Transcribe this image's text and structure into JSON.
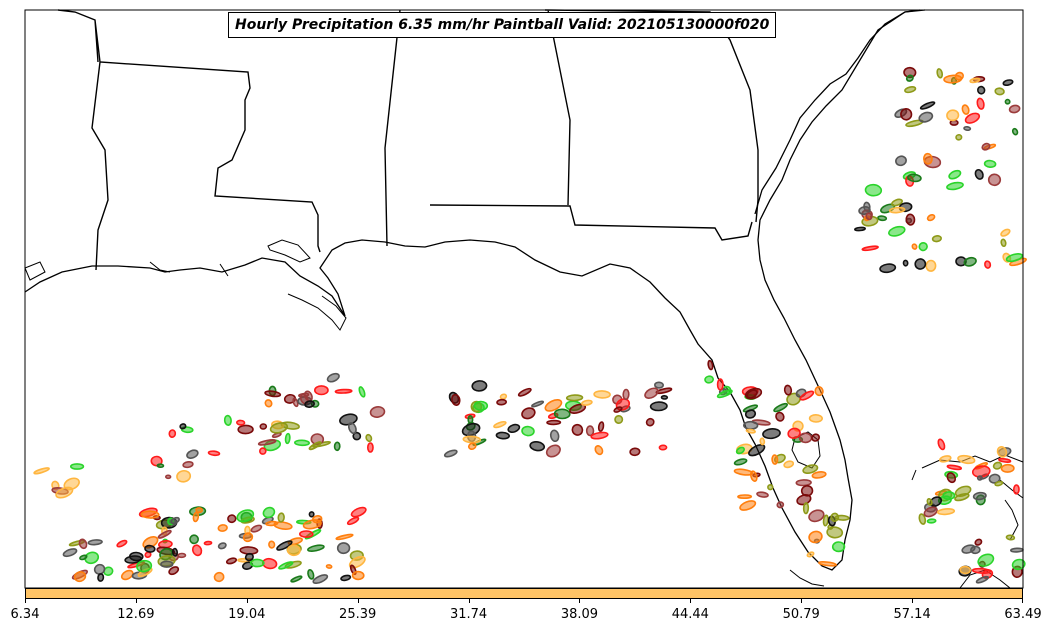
{
  "map": {
    "title": "Hourly Precipitation 6.35 mm/hr Paintball Valid: 202105130000f020",
    "region": "US Gulf Coast and Florida"
  },
  "colorbar": {
    "fill_color": "#ffc466",
    "ticks": [
      "6.34",
      "12.69",
      "19.04",
      "25.39",
      "31.74",
      "38.09",
      "44.44",
      "50.79",
      "57.14",
      "63.49"
    ]
  },
  "member_colors": [
    "#111111",
    "#7a0a0a",
    "#ff1a1a",
    "#ff7f0e",
    "#ffb640",
    "#8e9a18",
    "#1a7a1a",
    "#2ad42a",
    "#9b3b3b",
    "#555555"
  ]
}
